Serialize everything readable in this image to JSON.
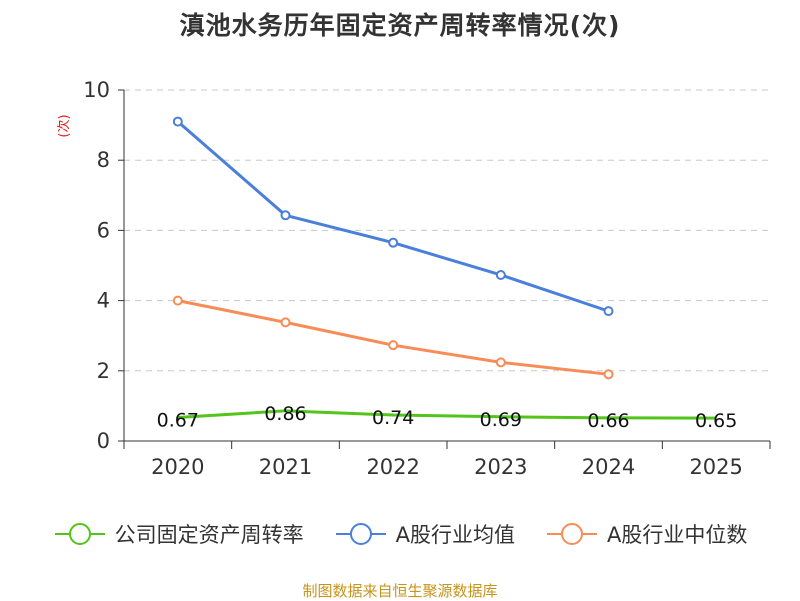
{
  "chart_data": {
    "type": "line",
    "title": "滇池水务历年固定资产周转率情况(次)",
    "ylabel": "(次)",
    "xlabel": "",
    "categories": [
      "2020",
      "2021",
      "2022",
      "2023",
      "2024",
      "2025"
    ],
    "ylim": [
      0,
      10
    ],
    "yticks": [
      0,
      2,
      4,
      6,
      8,
      10
    ],
    "grid": true,
    "legend_position": "bottom",
    "series": [
      {
        "name": "公司固定资产周转率",
        "color": "#52c41a",
        "values": [
          0.67,
          0.86,
          0.74,
          0.69,
          0.66,
          0.65
        ],
        "labels": [
          "0.67",
          "0.86",
          "0.74",
          "0.69",
          "0.66",
          "0.65"
        ],
        "markers": false
      },
      {
        "name": "A股行业均值",
        "color": "#4a7fdc",
        "values": [
          9.1,
          6.43,
          5.65,
          4.73,
          3.7,
          null
        ],
        "markers": true
      },
      {
        "name": "A股行业中位数",
        "color": "#f88c57",
        "values": [
          4.0,
          3.38,
          2.73,
          2.24,
          1.9,
          null
        ],
        "markers": true
      }
    ]
  },
  "source_note": "制图数据来自恒生聚源数据库"
}
